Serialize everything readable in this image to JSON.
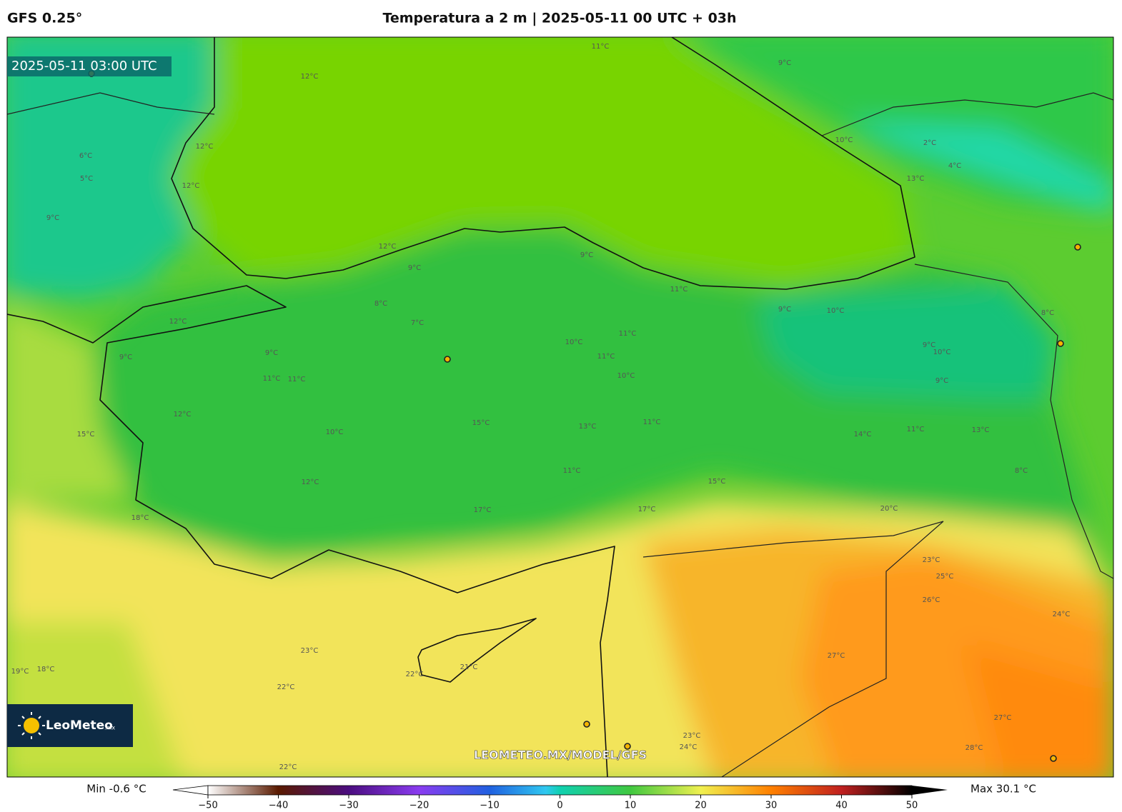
{
  "header": {
    "model": "GFS 0.25°",
    "title": "Temperatura a 2 m | 2025-05-11 00 UTC + 03h"
  },
  "map": {
    "valid_time": "2025-05-11 03:00 UTC",
    "watermark": "LEOMETEO.MX/MODEL/GFS",
    "contour_labels": [
      "12°C",
      "11°C",
      "9°C",
      "12°C",
      "9°C",
      "9°C",
      "11°C",
      "12°C",
      "9°C",
      "9°C",
      "11°C",
      "11°C",
      "8°C",
      "7°C",
      "10°C",
      "11°C",
      "11°C",
      "10°C",
      "10°C",
      "9°C",
      "9°C",
      "10°C",
      "9°C",
      "8°C",
      "12°C",
      "10°C",
      "15°C",
      "13°C",
      "11°C",
      "14°C",
      "11°C",
      "13°C",
      "8°C",
      "11°C",
      "12°C",
      "15°C",
      "20°C",
      "17°C",
      "17°C",
      "18°C",
      "23°C",
      "25°C",
      "26°C",
      "24°C",
      "23°C",
      "22°C",
      "21°C",
      "22°C",
      "27°C",
      "27°C",
      "28°C",
      "24°C",
      "23°C",
      "22°C",
      "19°C",
      "18°C",
      "15°C",
      "6°C",
      "5°C",
      "9°C",
      "12°C",
      "12°C",
      "2°C",
      "4°C",
      "13°C",
      "10°C"
    ]
  },
  "logo": {
    "name": "LeoMeteo",
    "suffix": ".mx"
  },
  "colorbar": {
    "min_label": "Min -0.6 °C",
    "max_label": "Max 30.1 °C",
    "lim": [
      -50,
      50
    ],
    "ticks": [
      {
        "value": -50,
        "label": "−50"
      },
      {
        "value": -40,
        "label": "−40"
      },
      {
        "value": -30,
        "label": "−30"
      },
      {
        "value": -20,
        "label": "−20"
      },
      {
        "value": -10,
        "label": "−10"
      },
      0,
      10,
      20,
      30,
      40,
      50
    ]
  }
}
